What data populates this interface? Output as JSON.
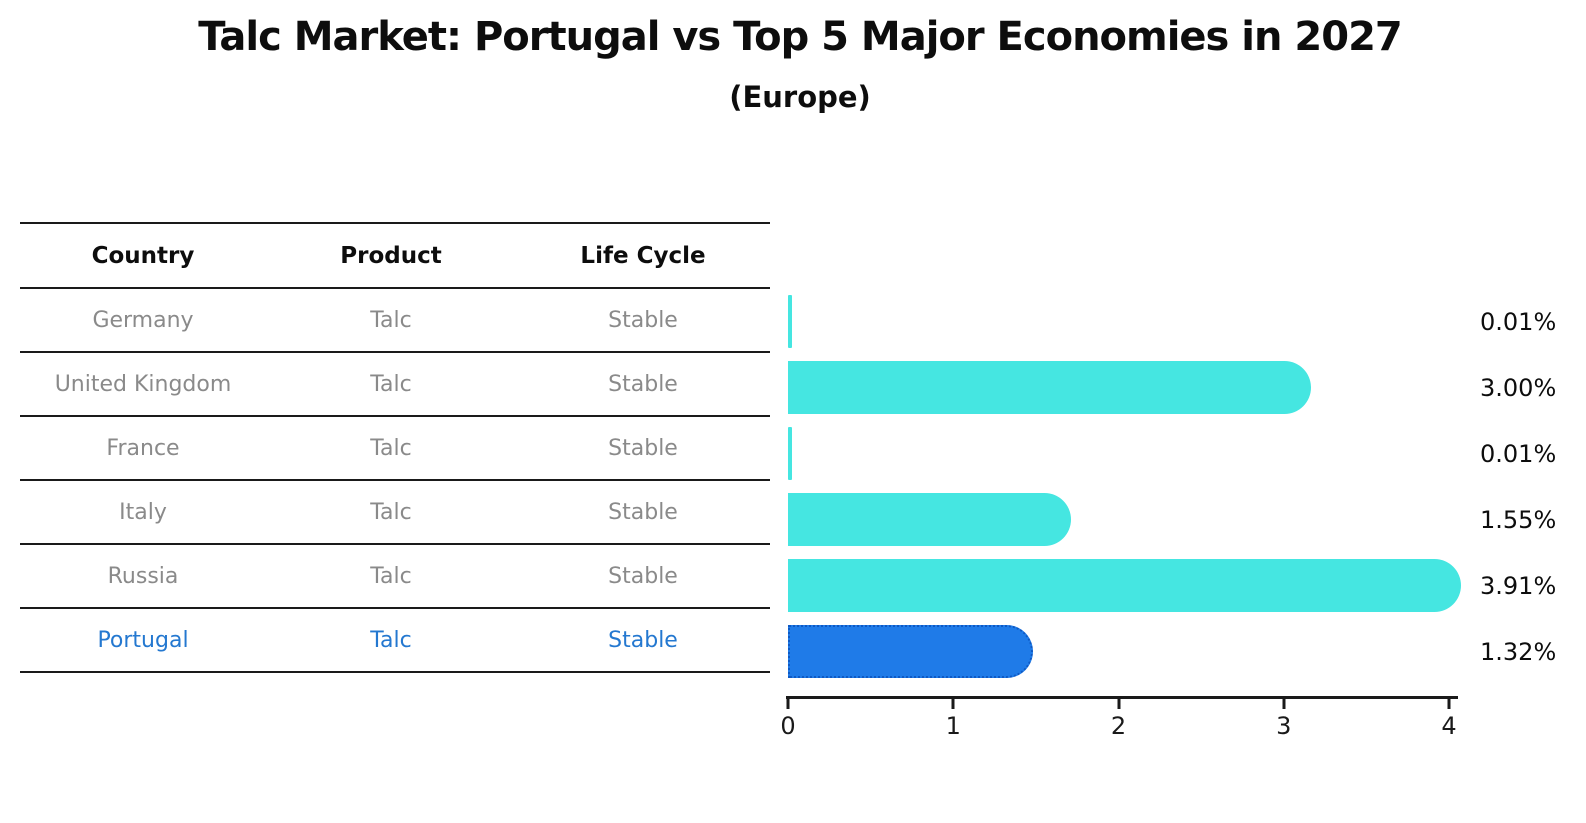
{
  "title": "Talc Market: Portugal vs Top 5 Major Economies in 2027",
  "subtitle": "(Europe)",
  "table": {
    "headers": [
      "Country",
      "Product",
      "Life Cycle"
    ],
    "rows": [
      {
        "country": "Germany",
        "product": "Talc",
        "life_cycle": "Stable",
        "highlighted": false
      },
      {
        "country": "United Kingdom",
        "product": "Talc",
        "life_cycle": "Stable",
        "highlighted": false
      },
      {
        "country": "France",
        "product": "Talc",
        "life_cycle": "Stable",
        "highlighted": false
      },
      {
        "country": "Italy",
        "product": "Talc",
        "life_cycle": "Stable",
        "highlighted": false
      },
      {
        "country": "Russia",
        "product": "Talc",
        "life_cycle": "Stable",
        "highlighted": false
      },
      {
        "country": "Portugal",
        "product": "Talc",
        "life_cycle": "Stable",
        "highlighted": true
      }
    ]
  },
  "chart_data": {
    "type": "bar",
    "orientation": "horizontal",
    "title": "Talc Market: Portugal vs Top 5 Major Economies in 2027",
    "subtitle": "(Europe)",
    "categories": [
      "Germany",
      "United Kingdom",
      "France",
      "Italy",
      "Russia",
      "Portugal"
    ],
    "values": [
      0.01,
      3.0,
      0.01,
      1.55,
      3.91,
      1.32
    ],
    "value_labels": [
      "0.01%",
      "3.00%",
      "0.01%",
      "1.55%",
      "3.91%",
      "1.32%"
    ],
    "highlight_index": 5,
    "x_ticks": [
      "0",
      "1",
      "2",
      "3",
      "4"
    ],
    "xlim": [
      0,
      4
    ],
    "grid": false,
    "legend": "none",
    "colors": {
      "bar": "#45E6E1",
      "highlight_bar": "#1F7BE8",
      "highlight_bar_border": "#0E59C4",
      "highlight_text": "#2478D0",
      "row_text": "#8A8A8A",
      "header_text": "#0D0D0D",
      "axis": "#1A1A1A"
    }
  }
}
